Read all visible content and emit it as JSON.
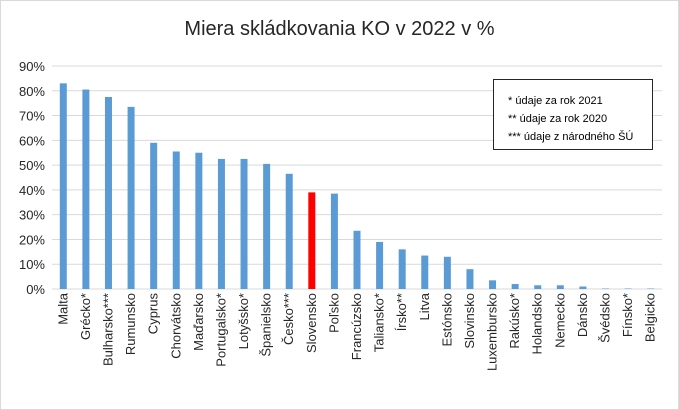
{
  "chart_data": {
    "type": "bar",
    "title": "Miera skládkovania KO v 2022 v %",
    "xlabel": "",
    "ylabel": "",
    "ylim": [
      0,
      90
    ],
    "yticks": [
      "0%",
      "10%",
      "20%",
      "30%",
      "40%",
      "50%",
      "60%",
      "70%",
      "80%",
      "90%"
    ],
    "grid": true,
    "legend_placement": "top-right",
    "categories": [
      "Malta",
      "Grécko*",
      "Bulharsko***",
      "Rumunsko",
      "Cyprus",
      "Chorvátsko",
      "Maďarsko",
      "Portugalsko*",
      "Lotyšsko*",
      "Španielsko",
      "Česko***",
      "Slovensko",
      "Poľsko",
      "Francúzsko",
      "Taliansko*",
      "Írsko**",
      "Litva",
      "Estónsko",
      "Slovinsko",
      "Luxembursko",
      "Rakúsko*",
      "Holandsko",
      "Nemecko",
      "Dánsko",
      "Švédsko",
      "Fínsko*",
      "Belgicko"
    ],
    "values": [
      83,
      80.5,
      77.5,
      73.5,
      59,
      55.5,
      55,
      52.5,
      52.5,
      50.5,
      46.5,
      39,
      38.5,
      23.5,
      19,
      16,
      13.5,
      13,
      8,
      3.5,
      2,
      1.5,
      1.5,
      1,
      0.2,
      0.2,
      0.2
    ],
    "highlight_category": "Slovensko",
    "colors": {
      "bar": "#5b9bd5",
      "highlight": "#ff0000",
      "grid": "#d9d9d9"
    },
    "notes": [
      "* údaje za rok 2021",
      "** údaje za rok 2020",
      "*** údaje z národného ŠÚ"
    ]
  }
}
